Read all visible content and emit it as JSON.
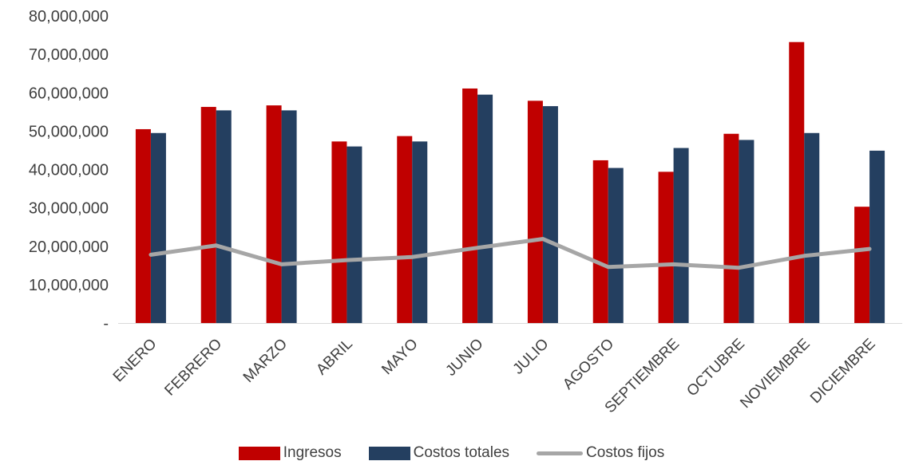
{
  "chart_data": {
    "type": "bar",
    "categories": [
      "ENERO",
      "FEBRERO",
      "MARZO",
      "ABRIL",
      "MAYO",
      "JUNIO",
      "JULIO",
      "AGOSTO",
      "SEPTIEMBRE",
      "OCTUBRE",
      "NOVIEMBRE",
      "DICIEMBRE"
    ],
    "series": [
      {
        "name": "Ingresos",
        "type": "bar",
        "color": "#C00000",
        "values": [
          50500000,
          56300000,
          56700000,
          47300000,
          48700000,
          61100000,
          57900000,
          42400000,
          39400000,
          49300000,
          73200000,
          30300000
        ]
      },
      {
        "name": "Costos totales",
        "type": "bar",
        "color": "#243F60",
        "values": [
          49500000,
          55400000,
          55400000,
          46000000,
          47300000,
          59500000,
          56500000,
          40400000,
          45600000,
          47700000,
          49500000,
          44900000
        ]
      },
      {
        "name": "Costos fijos",
        "type": "line",
        "color": "#A6A6A6",
        "values": [
          17800000,
          20200000,
          15300000,
          16400000,
          17200000,
          19600000,
          21900000,
          14600000,
          15300000,
          14400000,
          17500000,
          19300000
        ]
      }
    ],
    "ylim": [
      0,
      80000000
    ],
    "yticks": [
      0,
      10000000,
      20000000,
      30000000,
      40000000,
      50000000,
      60000000,
      70000000,
      80000000
    ],
    "ytick_labels": [
      "-",
      "10,000,000",
      "20,000,000",
      "30,000,000",
      "40,000,000",
      "50,000,000",
      "60,000,000",
      "70,000,000",
      "80,000,000"
    ],
    "grid": false,
    "legend_position": "bottom"
  }
}
